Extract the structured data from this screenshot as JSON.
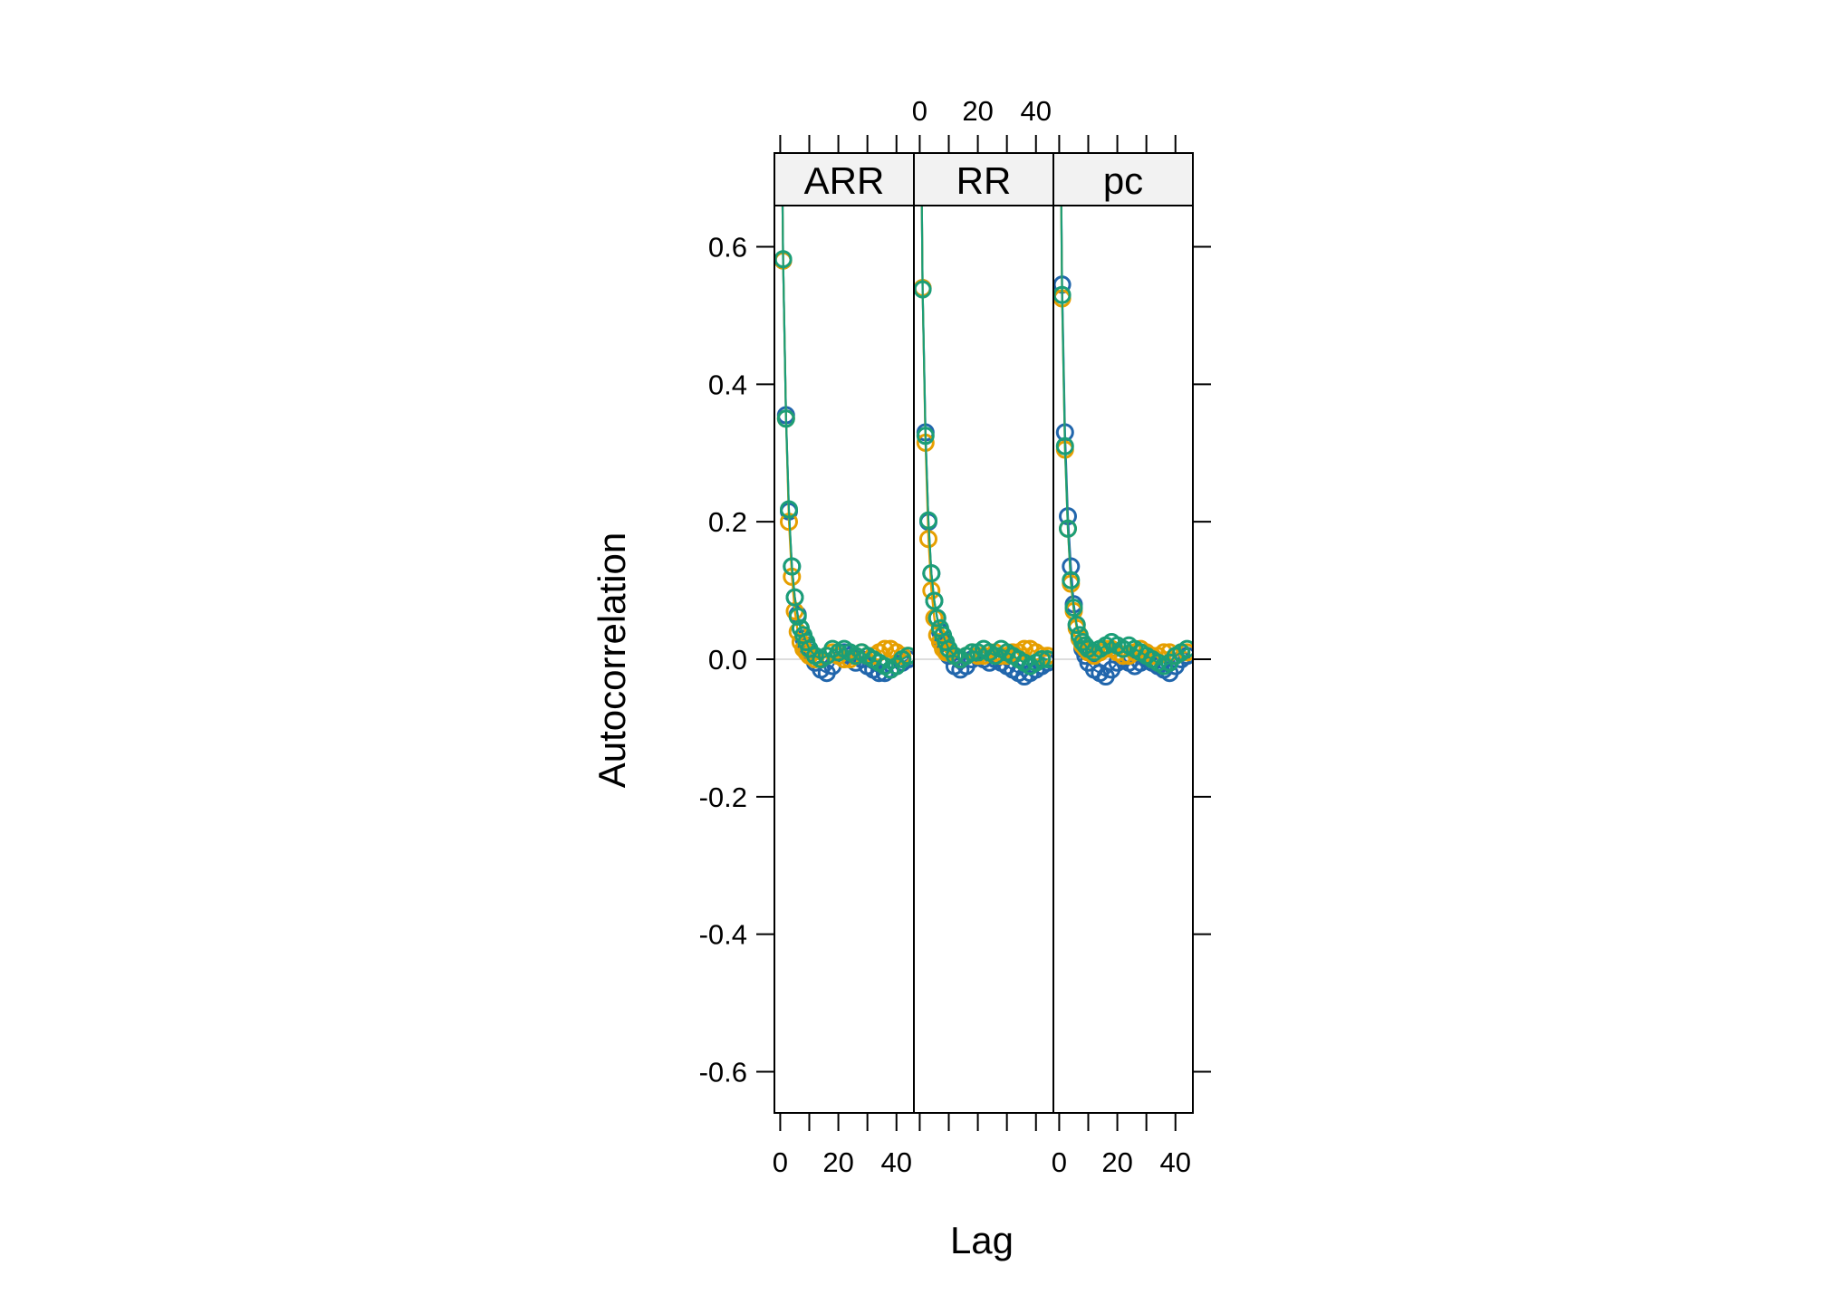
{
  "chart_data": {
    "type": "scatter",
    "xlabel": "Lag",
    "ylabel": "Autocorrelation",
    "ylim": [
      -0.66,
      0.66
    ],
    "xlim": [
      -2,
      46
    ],
    "y_ticks": [
      -0.6,
      -0.4,
      -0.2,
      0.0,
      0.2,
      0.4,
      0.6
    ],
    "y_tick_labels": [
      "-0.6",
      "-0.4",
      "-0.2",
      "0.0",
      "0.2",
      "0.4",
      "0.6"
    ],
    "x_ticks": [
      0,
      20,
      40
    ],
    "x_tick_labels": [
      "0",
      "20",
      "40"
    ],
    "x_minor_ticks": [
      0,
      10,
      20,
      30,
      40
    ],
    "reference_line": 0,
    "grid": false,
    "colors": {
      "blue": "#2166ac",
      "orange": "#e69f00",
      "green": "#1b9e77",
      "refline": "#dddddd",
      "strip": "#f2f2f2"
    },
    "panels": [
      {
        "strip": "ARR",
        "series": [
          {
            "color": "blue",
            "x": [
              1,
              2,
              3,
              4,
              5,
              6,
              7,
              8,
              9,
              10,
              12,
              14,
              16,
              18,
              20,
              22,
              24,
              26,
              28,
              30,
              32,
              34,
              36,
              38,
              40,
              42,
              44
            ],
            "y": [
              0.58,
              0.355,
              0.215,
              0.135,
              0.09,
              0.065,
              0.045,
              0.03,
              0.02,
              0.01,
              -0.005,
              -0.015,
              -0.02,
              -0.01,
              0.005,
              0.01,
              0.005,
              -0.005,
              0.0,
              -0.01,
              -0.015,
              -0.02,
              -0.02,
              -0.015,
              -0.01,
              -0.005,
              0.0
            ]
          },
          {
            "color": "orange",
            "x": [
              1,
              2,
              3,
              4,
              5,
              6,
              7,
              8,
              9,
              10,
              12,
              14,
              16,
              18,
              20,
              22,
              24,
              26,
              28,
              30,
              32,
              34,
              36,
              38,
              40,
              42,
              44
            ],
            "y": [
              0.58,
              0.35,
              0.2,
              0.12,
              0.07,
              0.04,
              0.025,
              0.015,
              0.01,
              0.005,
              0.0,
              0.0,
              0.005,
              0.01,
              0.005,
              0.0,
              0.0,
              0.005,
              0.01,
              0.005,
              0.005,
              0.01,
              0.015,
              0.015,
              0.01,
              0.005,
              0.005
            ]
          },
          {
            "color": "green",
            "x": [
              1,
              2,
              3,
              4,
              5,
              6,
              7,
              8,
              9,
              10,
              12,
              14,
              16,
              18,
              20,
              22,
              24,
              26,
              28,
              30,
              32,
              34,
              36,
              38,
              40,
              42,
              44
            ],
            "y": [
              0.582,
              0.35,
              0.218,
              0.135,
              0.09,
              0.062,
              0.045,
              0.035,
              0.025,
              0.015,
              0.005,
              0.0,
              0.005,
              0.015,
              0.01,
              0.015,
              0.01,
              0.005,
              0.01,
              0.005,
              0.0,
              -0.005,
              -0.01,
              -0.015,
              -0.01,
              0.0,
              0.005
            ]
          }
        ]
      },
      {
        "strip": "RR",
        "series": [
          {
            "color": "blue",
            "x": [
              1,
              2,
              3,
              4,
              5,
              6,
              7,
              8,
              9,
              10,
              12,
              14,
              16,
              18,
              20,
              22,
              24,
              26,
              28,
              30,
              32,
              34,
              36,
              38,
              40,
              42,
              44
            ],
            "y": [
              0.54,
              0.33,
              0.2,
              0.125,
              0.085,
              0.06,
              0.04,
              0.025,
              0.015,
              0.005,
              -0.01,
              -0.015,
              -0.01,
              0.0,
              0.005,
              0.0,
              -0.005,
              0.0,
              -0.005,
              -0.01,
              -0.015,
              -0.02,
              -0.025,
              -0.02,
              -0.015,
              -0.01,
              -0.005
            ]
          },
          {
            "color": "orange",
            "x": [
              1,
              2,
              3,
              4,
              5,
              6,
              7,
              8,
              9,
              10,
              12,
              14,
              16,
              18,
              20,
              22,
              24,
              26,
              28,
              30,
              32,
              34,
              36,
              38,
              40,
              42,
              44
            ],
            "y": [
              0.54,
              0.315,
              0.175,
              0.1,
              0.06,
              0.035,
              0.025,
              0.015,
              0.01,
              0.01,
              0.005,
              0.0,
              0.005,
              0.01,
              0.005,
              0.005,
              0.01,
              0.01,
              0.005,
              0.005,
              0.01,
              0.01,
              0.015,
              0.015,
              0.01,
              0.005,
              0.005
            ]
          },
          {
            "color": "green",
            "x": [
              1,
              2,
              3,
              4,
              5,
              6,
              7,
              8,
              9,
              10,
              12,
              14,
              16,
              18,
              20,
              22,
              24,
              26,
              28,
              30,
              32,
              34,
              36,
              38,
              40,
              42,
              44
            ],
            "y": [
              0.538,
              0.325,
              0.202,
              0.125,
              0.085,
              0.06,
              0.045,
              0.035,
              0.025,
              0.015,
              0.005,
              0.0,
              0.005,
              0.01,
              0.01,
              0.015,
              0.01,
              0.005,
              0.015,
              0.01,
              0.005,
              0.0,
              -0.005,
              -0.01,
              -0.005,
              0.0,
              0.0
            ]
          }
        ]
      },
      {
        "strip": "pc",
        "series": [
          {
            "color": "blue",
            "x": [
              1,
              2,
              3,
              4,
              5,
              6,
              7,
              8,
              9,
              10,
              12,
              14,
              16,
              18,
              20,
              22,
              24,
              26,
              28,
              30,
              32,
              34,
              36,
              38,
              40,
              42,
              44
            ],
            "y": [
              0.545,
              0.33,
              0.208,
              0.135,
              0.08,
              0.05,
              0.03,
              0.015,
              0.005,
              -0.005,
              -0.015,
              -0.02,
              -0.025,
              -0.015,
              -0.005,
              0.0,
              -0.005,
              -0.01,
              -0.005,
              0.0,
              -0.005,
              -0.01,
              -0.015,
              -0.02,
              -0.01,
              0.0,
              0.005
            ]
          },
          {
            "color": "orange",
            "x": [
              1,
              2,
              3,
              4,
              5,
              6,
              7,
              8,
              9,
              10,
              12,
              14,
              16,
              18,
              20,
              22,
              24,
              26,
              28,
              30,
              32,
              34,
              36,
              38,
              40,
              42,
              44
            ],
            "y": [
              0.525,
              0.305,
              0.19,
              0.11,
              0.07,
              0.045,
              0.03,
              0.02,
              0.015,
              0.01,
              0.005,
              0.01,
              0.015,
              0.015,
              0.01,
              0.005,
              0.005,
              0.01,
              0.015,
              0.01,
              0.005,
              0.005,
              0.01,
              0.01,
              0.005,
              0.01,
              0.01
            ]
          },
          {
            "color": "green",
            "x": [
              1,
              2,
              3,
              4,
              5,
              6,
              7,
              8,
              9,
              10,
              12,
              14,
              16,
              18,
              20,
              22,
              24,
              26,
              28,
              30,
              32,
              34,
              36,
              38,
              40,
              42,
              44
            ],
            "y": [
              0.53,
              0.31,
              0.19,
              0.115,
              0.075,
              0.05,
              0.035,
              0.025,
              0.02,
              0.015,
              0.01,
              0.015,
              0.02,
              0.025,
              0.02,
              0.015,
              0.02,
              0.015,
              0.01,
              0.005,
              0.0,
              -0.005,
              -0.01,
              -0.005,
              0.005,
              0.01,
              0.015
            ]
          }
        ]
      }
    ]
  }
}
